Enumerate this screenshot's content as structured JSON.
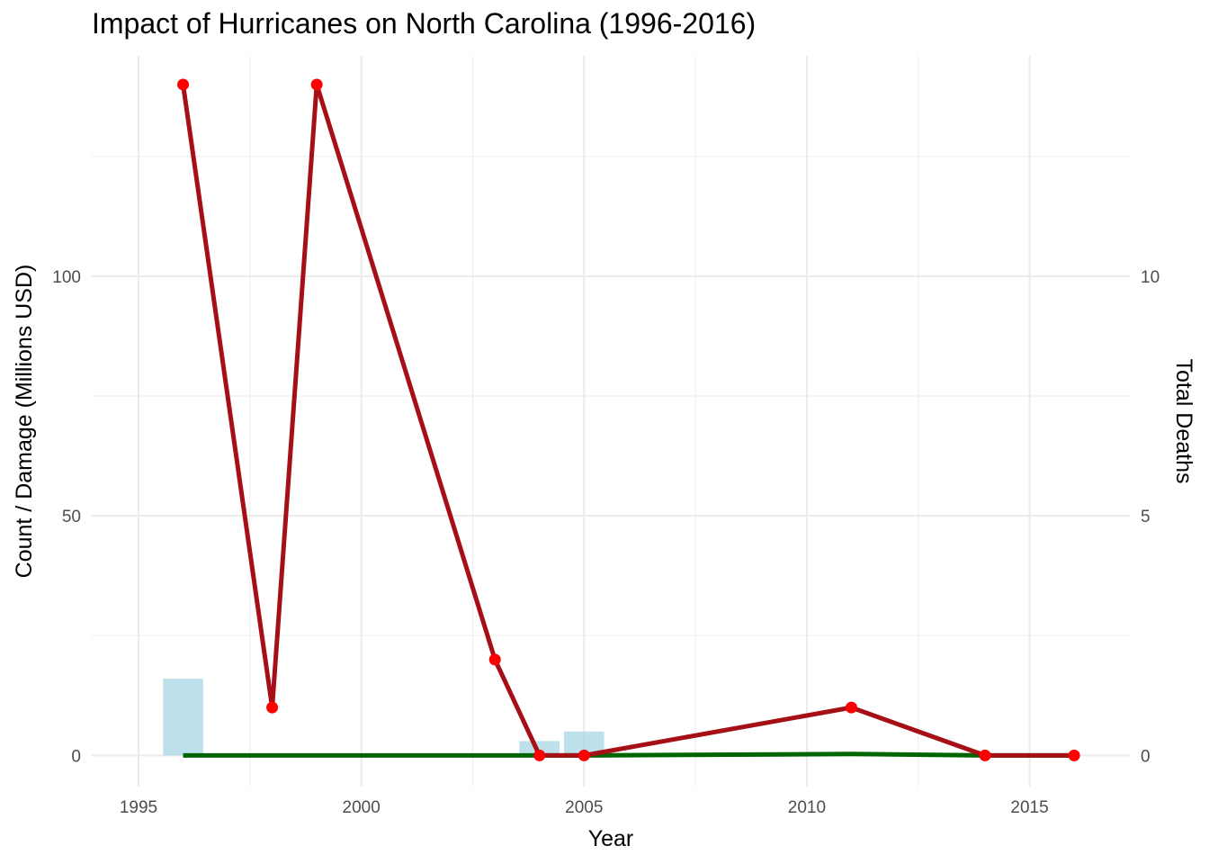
{
  "chart_data": {
    "type": "bar+line",
    "title": "Impact of Hurricanes on North Carolina (1996-2016)",
    "xlabel": "Year",
    "ylabel": "Count / Damage (Millions USD)",
    "y2label": "Total Deaths",
    "xlim": [
      1993.95,
      2017.25
    ],
    "ylim": [
      -6.5,
      146
    ],
    "y2_scale_factor": 10,
    "x_ticks": [
      1995,
      2000,
      2005,
      2010,
      2015
    ],
    "x_tick_labels": [
      "1995",
      "2000",
      "2005",
      "2010",
      "2015"
    ],
    "y_ticks": [
      0,
      50,
      100
    ],
    "y_tick_labels": [
      "0",
      "50",
      "100"
    ],
    "y2_ticks": [
      0,
      5,
      10
    ],
    "y2_tick_labels": [
      "0",
      "5",
      "10"
    ],
    "grid": true,
    "bars": {
      "color": "#add8e6",
      "bar_width_years": 0.9,
      "x": [
        1996,
        2004,
        2005
      ],
      "values": [
        16,
        3,
        5
      ]
    },
    "damage_line": {
      "color": "#006400",
      "x": [
        1996,
        1998,
        1999,
        2003,
        2004,
        2005,
        2011,
        2014,
        2016
      ],
      "values": [
        0,
        0,
        0,
        0,
        0,
        0,
        0.3,
        0,
        0
      ]
    },
    "deaths_line": {
      "color": "#a50f15",
      "point_color": "#ff0000",
      "x": [
        1996,
        1998,
        1999,
        2003,
        2004,
        2005,
        2011,
        2014,
        2016
      ],
      "values": [
        14,
        1,
        14,
        2,
        0,
        0,
        1,
        0,
        0
      ]
    }
  }
}
